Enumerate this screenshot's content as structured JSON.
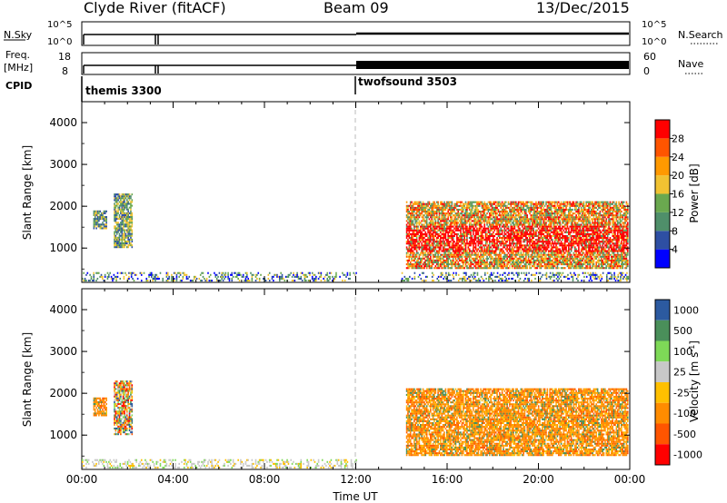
{
  "header": {
    "station": "Clyde River (fitACF)",
    "beam": "Beam 09",
    "date": "13/Dec/2015"
  },
  "strip_nsky": {
    "left_label": "N.Sky",
    "right_label": "N.Search",
    "ticks_left": [
      "10^5",
      "10^0"
    ],
    "ticks_right": [
      "10^5",
      "10^0"
    ]
  },
  "strip_freq": {
    "left_label_1": "Freq.",
    "left_label_2": "[MHz]",
    "right_label": "Nave",
    "ticks_left": [
      "18",
      "8"
    ],
    "ticks_right": [
      "60",
      "0"
    ]
  },
  "cpid": {
    "label": "CPID",
    "modes": [
      {
        "name": "themis 3300",
        "start_hour": 0
      },
      {
        "name": "twofsound 3503",
        "start_hour": 12
      }
    ]
  },
  "colors": {
    "power": [
      "#0000ff",
      "#2e4fa3",
      "#4f8f6a",
      "#6aa84f",
      "#f1c232",
      "#ff9900",
      "#ff5500",
      "#ff0000"
    ],
    "velocity": [
      "#ff0000",
      "#ff5500",
      "#ff8c00",
      "#ffc000",
      "#c8c8c8",
      "#7ed957",
      "#4a8f5a",
      "#2c5aa0"
    ]
  },
  "chart_data": [
    {
      "type": "heatmap",
      "ylabel": "Slant Range [km]",
      "xlim": [
        0,
        24
      ],
      "ylim": [
        180,
        4500
      ],
      "yticks": [
        "1000",
        "2000",
        "3000",
        "4000"
      ],
      "colorbar": {
        "label": "Power [dB]",
        "ticks": [
          "4",
          "8",
          "12",
          "16",
          "20",
          "24",
          "28"
        ],
        "range": [
          0,
          32
        ]
      },
      "regions": [
        {
          "x0": 0.0,
          "x1": 12.0,
          "y0": 200,
          "y1": 420,
          "level": "low-noise"
        },
        {
          "x0": 0.5,
          "x1": 1.1,
          "y0": 1450,
          "y1": 1900,
          "level": "mid"
        },
        {
          "x0": 1.4,
          "x1": 2.2,
          "y0": 1000,
          "y1": 2300,
          "level": "mid"
        },
        {
          "x0": 14.2,
          "x1": 23.9,
          "y0": 500,
          "y1": 2100,
          "level": "high"
        },
        {
          "x0": 14.0,
          "x1": 23.9,
          "y0": 200,
          "y1": 420,
          "level": "low-noise"
        }
      ]
    },
    {
      "type": "heatmap",
      "xlabel": "Time UT",
      "ylabel": "Slant Range [km]",
      "xlim": [
        0,
        24
      ],
      "ylim": [
        180,
        4500
      ],
      "xticks": [
        "00:00",
        "04:00",
        "08:00",
        "12:00",
        "16:00",
        "20:00",
        "00:00"
      ],
      "yticks": [
        "1000",
        "2000",
        "3000",
        "4000"
      ],
      "colorbar": {
        "label": "Velocity [m s",
        "label_sup": "-1",
        "label_end": "]",
        "ticks": [
          "1000",
          "500",
          "100",
          "25",
          "-25",
          "-100",
          "-500",
          "-1000"
        ]
      },
      "regions": [
        {
          "x0": 0.0,
          "x1": 12.0,
          "y0": 200,
          "y1": 420,
          "level": "ground"
        },
        {
          "x0": 0.5,
          "x1": 1.1,
          "y0": 1450,
          "y1": 1900,
          "level": "negative"
        },
        {
          "x0": 1.4,
          "x1": 2.2,
          "y0": 1000,
          "y1": 2300,
          "level": "mixed"
        },
        {
          "x0": 14.2,
          "x1": 23.9,
          "y0": 500,
          "y1": 2100,
          "level": "negative"
        }
      ]
    }
  ]
}
